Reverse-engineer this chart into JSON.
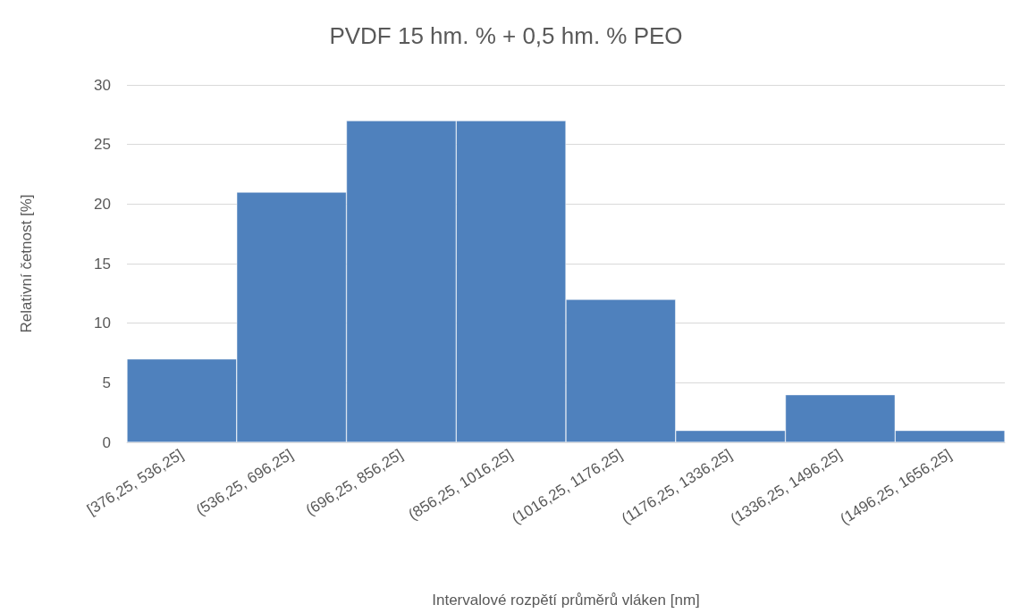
{
  "chart_data": {
    "type": "bar",
    "title": "PVDF 15 hm. % + 0,5 hm. % PEO",
    "xlabel": "Intervalové rozpětí průměrů vláken [nm]",
    "ylabel": "Relativní četnost [%]",
    "categories": [
      "[376,25, 536,25]",
      "(536,25, 696,25]",
      "(696,25, 856,25]",
      "(856,25, 1016,25]",
      "(1016,25, 1176,25]",
      "(1176,25, 1336,25]",
      "(1336,25, 1496,25]",
      "(1496,25, 1656,25]"
    ],
    "values": [
      7,
      21,
      27,
      27,
      12,
      1,
      4,
      1
    ],
    "color": "#4f81bd",
    "ylim": [
      0,
      30
    ],
    "yticks": [
      0,
      5,
      10,
      15,
      20,
      25,
      30
    ],
    "grid": "y"
  }
}
